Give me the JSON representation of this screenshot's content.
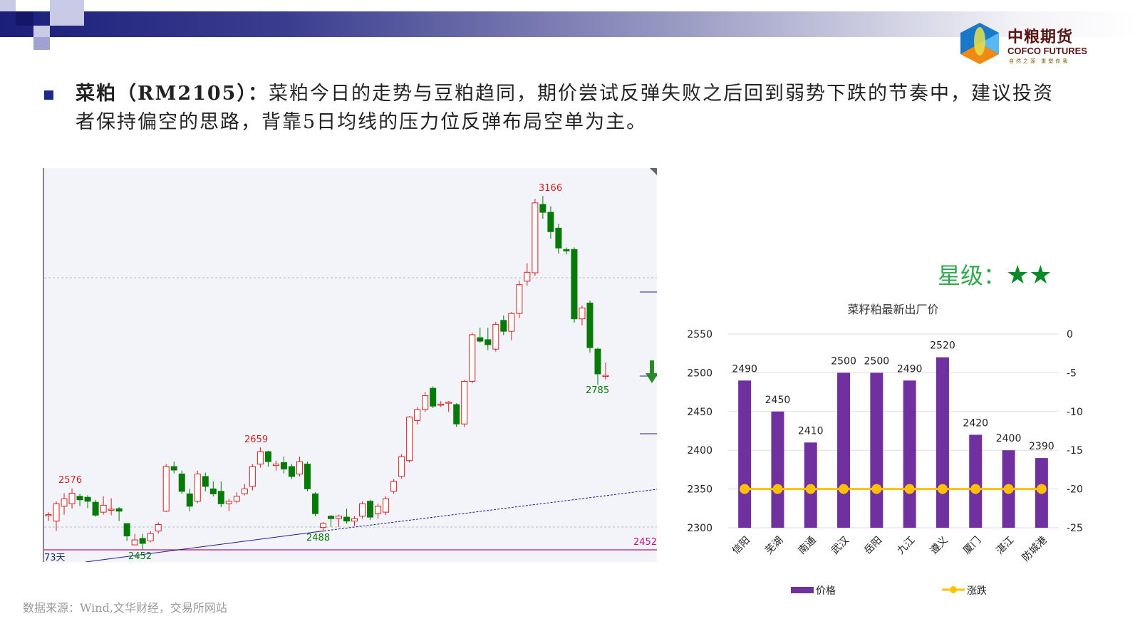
{
  "header": {
    "logo": {
      "name_cn": "中粮期货",
      "name_en": "COFCO FUTURES",
      "slogan": "自然之源 重塑你我"
    }
  },
  "commentary": {
    "title": "菜粕（RM2105）：",
    "text": "菜粕今日的走势与豆粕趋同，期价尝试反弹失败之后回到弱势下跌的节奏中，建议投资者保持偏空的思路，背靠5日均线的压力位反弹布局空单为主。"
  },
  "rating": {
    "label": "星级：",
    "stars": 2,
    "star_color": "#0c8a2a"
  },
  "source": "数据来源：Wind,文华财经，交易所网站",
  "chart_data": [
    {
      "type": "candlestick",
      "annotations": {
        "high_label": "3166",
        "low_label": "2785",
        "peak1": "2659",
        "peak0": "2576",
        "low1": "2488",
        "low0": "2452",
        "baseline_label": "2452",
        "days_label": "73天"
      },
      "up_color": "#d42020",
      "down_color": "#067a06",
      "ohlc": [
        [
          2523,
          2528,
          2510,
          2523
        ],
        [
          2510,
          2550,
          2490,
          2545
        ],
        [
          2540,
          2566,
          2523,
          2555
        ],
        [
          2545,
          2576,
          2535,
          2566
        ],
        [
          2560,
          2565,
          2540,
          2553
        ],
        [
          2558,
          2562,
          2536,
          2550
        ],
        [
          2548,
          2553,
          2519,
          2522
        ],
        [
          2528,
          2560,
          2523,
          2542
        ],
        [
          2534,
          2556,
          2522,
          2534
        ],
        [
          2535,
          2538,
          2510,
          2530
        ],
        [
          2505,
          2505,
          2470,
          2480
        ],
        [
          2462,
          2484,
          2462,
          2472
        ],
        [
          2475,
          2484,
          2452,
          2465
        ],
        [
          2470,
          2490,
          2467,
          2485
        ],
        [
          2490,
          2508,
          2485,
          2503
        ],
        [
          2530,
          2625,
          2528,
          2620
        ],
        [
          2620,
          2630,
          2606,
          2613
        ],
        [
          2605,
          2612,
          2565,
          2570
        ],
        [
          2565,
          2575,
          2530,
          2540
        ],
        [
          2550,
          2612,
          2546,
          2605
        ],
        [
          2600,
          2608,
          2570,
          2580
        ],
        [
          2575,
          2590,
          2560,
          2565
        ],
        [
          2570,
          2590,
          2538,
          2545
        ],
        [
          2545,
          2555,
          2530,
          2550
        ],
        [
          2550,
          2568,
          2546,
          2560
        ],
        [
          2565,
          2585,
          2562,
          2575
        ],
        [
          2580,
          2625,
          2572,
          2620
        ],
        [
          2625,
          2659,
          2618,
          2650
        ],
        [
          2650,
          2652,
          2620,
          2630
        ],
        [
          2622,
          2632,
          2612,
          2625
        ],
        [
          2628,
          2640,
          2606,
          2615
        ],
        [
          2620,
          2625,
          2595,
          2600
        ],
        [
          2605,
          2640,
          2600,
          2630
        ],
        [
          2625,
          2630,
          2570,
          2575
        ],
        [
          2565,
          2568,
          2520,
          2525
        ],
        [
          2497,
          2508,
          2488,
          2505
        ],
        [
          2520,
          2522,
          2498,
          2515
        ],
        [
          2515,
          2523,
          2498,
          2520
        ],
        [
          2518,
          2535,
          2505,
          2510
        ],
        [
          2510,
          2520,
          2500,
          2515
        ],
        [
          2520,
          2550,
          2515,
          2545
        ],
        [
          2550,
          2553,
          2512,
          2518
        ],
        [
          2525,
          2545,
          2515,
          2540
        ],
        [
          2528,
          2560,
          2522,
          2555
        ],
        [
          2570,
          2595,
          2565,
          2590
        ],
        [
          2600,
          2645,
          2596,
          2640
        ],
        [
          2632,
          2722,
          2628,
          2720
        ],
        [
          2713,
          2740,
          2705,
          2735
        ],
        [
          2735,
          2770,
          2730,
          2763
        ],
        [
          2778,
          2782,
          2738,
          2742
        ],
        [
          2746,
          2752,
          2740,
          2746
        ],
        [
          2748,
          2752,
          2730,
          2750
        ],
        [
          2745,
          2748,
          2700,
          2706
        ],
        [
          2706,
          2795,
          2700,
          2792
        ],
        [
          2792,
          2890,
          2788,
          2886
        ],
        [
          2880,
          2900,
          2870,
          2873
        ],
        [
          2876,
          2900,
          2855,
          2866
        ],
        [
          2857,
          2912,
          2852,
          2907
        ],
        [
          2915,
          2925,
          2885,
          2893
        ],
        [
          2893,
          2932,
          2875,
          2929
        ],
        [
          2929,
          2995,
          2920,
          2987
        ],
        [
          2994,
          3030,
          2985,
          3012
        ],
        [
          3011,
          3160,
          3005,
          3152
        ],
        [
          3149,
          3166,
          3120,
          3133
        ],
        [
          3133,
          3145,
          3080,
          3094
        ],
        [
          3101,
          3110,
          3050,
          3061
        ],
        [
          3058,
          3062,
          3048,
          3055
        ],
        [
          3058,
          3062,
          2910,
          2918
        ],
        [
          2918,
          2945,
          2905,
          2940
        ],
        [
          2950,
          2955,
          2850,
          2860
        ],
        [
          2857,
          2860,
          2785,
          2807
        ],
        [
          2804,
          2830,
          2795,
          2804
        ]
      ]
    },
    {
      "type": "bar+line",
      "title": "菜籽粕最新出厂价",
      "categories": [
        "信阳",
        "芜湖",
        "南通",
        "武汉",
        "岳阳",
        "九江",
        "遵义",
        "厦门",
        "湛江",
        "防城港"
      ],
      "series": [
        {
          "name": "价格",
          "axis": "left",
          "color": "#7030a0",
          "values": [
            2490,
            2450,
            2410,
            2500,
            2500,
            2490,
            2520,
            2420,
            2400,
            2390
          ]
        },
        {
          "name": "涨跌",
          "axis": "right",
          "color": "#ffc000",
          "values": [
            -20,
            -20,
            -20,
            -20,
            -20,
            -20,
            -20,
            -20,
            -20,
            -20
          ]
        }
      ],
      "ylim_left": [
        2300,
        2550
      ],
      "yticks_left": [
        "2550",
        "2500",
        "2450",
        "2400",
        "2350",
        "2300"
      ],
      "ylim_right": [
        -25,
        0
      ],
      "yticks_right": [
        "0",
        "-5",
        "-10",
        "-15",
        "-20",
        "-25"
      ],
      "legend": "bottom",
      "grid": true
    }
  ]
}
